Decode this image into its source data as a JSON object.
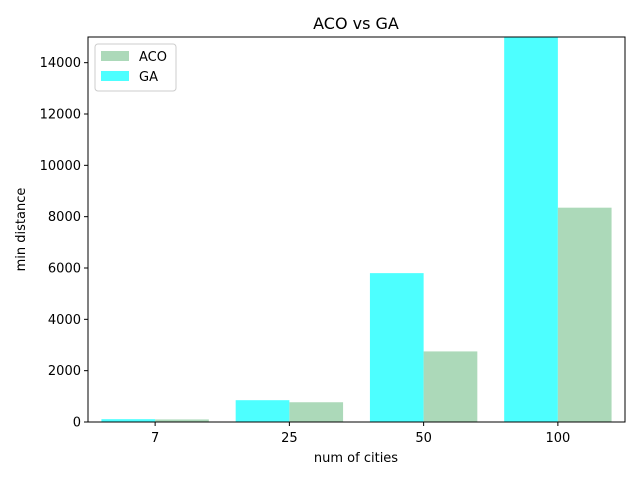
{
  "chart_data": {
    "type": "bar",
    "title": "ACO vs GA",
    "xlabel": "num of cities",
    "ylabel": "min distance",
    "categories": [
      "7",
      "25",
      "50",
      "100"
    ],
    "ylim": [
      0,
      15000
    ],
    "yticks": [
      0,
      2000,
      4000,
      6000,
      8000,
      10000,
      12000,
      14000
    ],
    "grid": false,
    "legend_position": "top-left",
    "series": [
      {
        "name": "GA",
        "color": "#4dffff",
        "values": [
          110,
          850,
          5800,
          15000
        ]
      },
      {
        "name": "ACO",
        "color": "#acd9b9",
        "values": [
          100,
          770,
          2750,
          8350
        ]
      }
    ],
    "legend_order": [
      "ACO",
      "GA"
    ]
  }
}
